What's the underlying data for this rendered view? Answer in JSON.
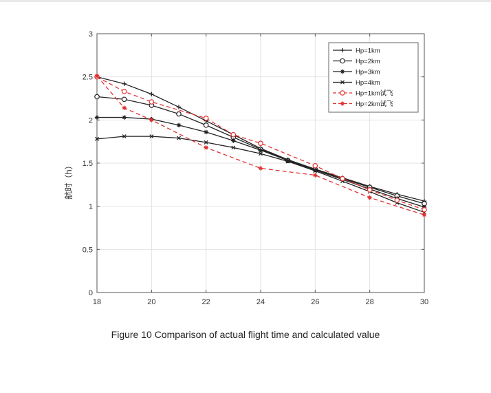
{
  "caption": "Figure 10 Comparison of actual flight time and calculated value",
  "chart_data": {
    "type": "line",
    "title": "",
    "xlabel": "",
    "ylabel": "航时（h）",
    "xlim": [
      18,
      30
    ],
    "ylim": [
      0,
      3
    ],
    "xticks": [
      18,
      20,
      22,
      24,
      26,
      28,
      30
    ],
    "yticks": [
      0,
      0.5,
      1,
      1.5,
      2,
      2.5,
      3
    ],
    "grid": true,
    "legend_position": "top-right",
    "series": [
      {
        "name": "Hp=1km",
        "color": "#222222",
        "dash": "solid",
        "marker": "plus",
        "x": [
          18,
          19,
          20,
          21,
          22,
          23,
          24,
          25,
          26,
          27,
          28,
          29,
          30
        ],
        "y": [
          2.5,
          2.42,
          2.3,
          2.15,
          1.99,
          1.83,
          1.67,
          1.54,
          1.43,
          1.33,
          1.23,
          1.14,
          1.06
        ]
      },
      {
        "name": "Hp=2km",
        "color": "#222222",
        "dash": "solid",
        "marker": "circle",
        "x": [
          18,
          19,
          20,
          21,
          22,
          23,
          24,
          25,
          26,
          27,
          28,
          29,
          30
        ],
        "y": [
          2.27,
          2.24,
          2.17,
          2.07,
          1.94,
          1.8,
          1.66,
          1.53,
          1.43,
          1.32,
          1.22,
          1.12,
          1.03
        ]
      },
      {
        "name": "Hp=3km",
        "color": "#222222",
        "dash": "solid",
        "marker": "star",
        "x": [
          18,
          19,
          20,
          21,
          22,
          23,
          24,
          25,
          26,
          27,
          28,
          29,
          30
        ],
        "y": [
          2.03,
          2.03,
          2.01,
          1.94,
          1.86,
          1.76,
          1.65,
          1.53,
          1.42,
          1.31,
          1.2,
          1.09,
          0.99
        ]
      },
      {
        "name": "Hp=4km",
        "color": "#222222",
        "dash": "solid",
        "marker": "x",
        "x": [
          18,
          19,
          20,
          21,
          22,
          23,
          24,
          25,
          26,
          27,
          28,
          29,
          30
        ],
        "y": [
          1.78,
          1.81,
          1.81,
          1.79,
          1.74,
          1.68,
          1.61,
          1.52,
          1.41,
          1.29,
          1.17,
          1.04,
          0.93
        ]
      },
      {
        "name": "Hp=1km试飞",
        "color": "#e03030",
        "dash": "dashed",
        "marker": "circle",
        "x": [
          18,
          19,
          20,
          22,
          23,
          24,
          26,
          27,
          28,
          29,
          30
        ],
        "y": [
          2.5,
          2.33,
          2.21,
          2.02,
          1.83,
          1.73,
          1.47,
          1.32,
          1.19,
          1.07,
          0.96
        ]
      },
      {
        "name": "Hp=2km试飞",
        "color": "#e03030",
        "dash": "dashed",
        "marker": "star",
        "x": [
          18,
          19,
          20,
          22,
          24,
          26,
          28,
          30
        ],
        "y": [
          2.51,
          2.14,
          2.0,
          1.68,
          1.44,
          1.36,
          1.1,
          0.9
        ]
      }
    ]
  }
}
